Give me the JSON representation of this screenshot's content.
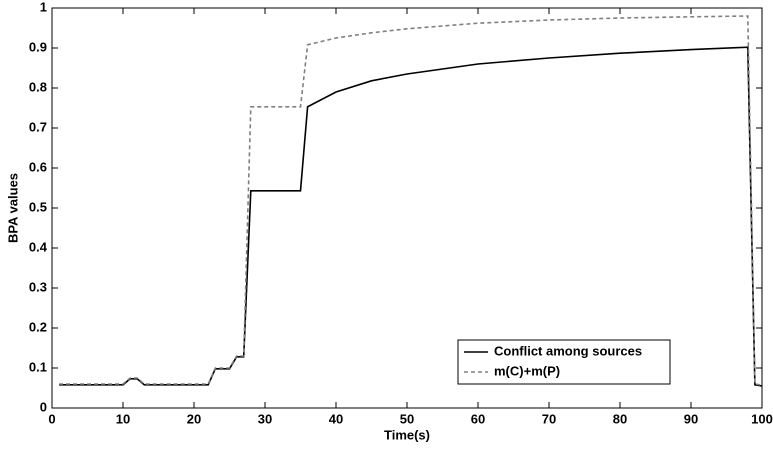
{
  "chart_data": {
    "type": "line",
    "xlabel": "Time(s)",
    "ylabel": "BPA values",
    "xlim": [
      0,
      100
    ],
    "ylim": [
      0,
      1
    ],
    "xticks": [
      0,
      10,
      20,
      30,
      40,
      50,
      60,
      70,
      80,
      90,
      100
    ],
    "yticks": [
      0,
      0.1,
      0.2,
      0.3,
      0.4,
      0.5,
      0.6,
      0.7,
      0.8,
      0.9,
      1
    ],
    "legend": "lower right",
    "series": [
      {
        "name": "Conflict among sources",
        "color": "#000000",
        "dash": "solid",
        "x": [
          1,
          10,
          11,
          12,
          13,
          22,
          23,
          25,
          26,
          27,
          28,
          35,
          36,
          40,
          45,
          50,
          60,
          70,
          80,
          90,
          98,
          99,
          100
        ],
        "values": [
          0.058,
          0.058,
          0.073,
          0.073,
          0.058,
          0.058,
          0.098,
          0.098,
          0.128,
          0.128,
          0.543,
          0.543,
          0.753,
          0.79,
          0.818,
          0.835,
          0.86,
          0.875,
          0.887,
          0.896,
          0.902,
          0.058,
          0.055
        ]
      },
      {
        "name": "m(C)+m(P)",
        "color": "#808080",
        "dash": "dashed",
        "x": [
          1,
          10,
          11,
          12,
          13,
          22,
          23,
          25,
          26,
          27,
          28,
          35,
          36,
          40,
          45,
          50,
          60,
          70,
          80,
          90,
          98,
          99,
          100
        ],
        "values": [
          0.06,
          0.06,
          0.075,
          0.075,
          0.06,
          0.06,
          0.1,
          0.1,
          0.13,
          0.13,
          0.753,
          0.753,
          0.908,
          0.925,
          0.938,
          0.948,
          0.962,
          0.97,
          0.975,
          0.978,
          0.98,
          0.06,
          0.057
        ]
      }
    ]
  }
}
